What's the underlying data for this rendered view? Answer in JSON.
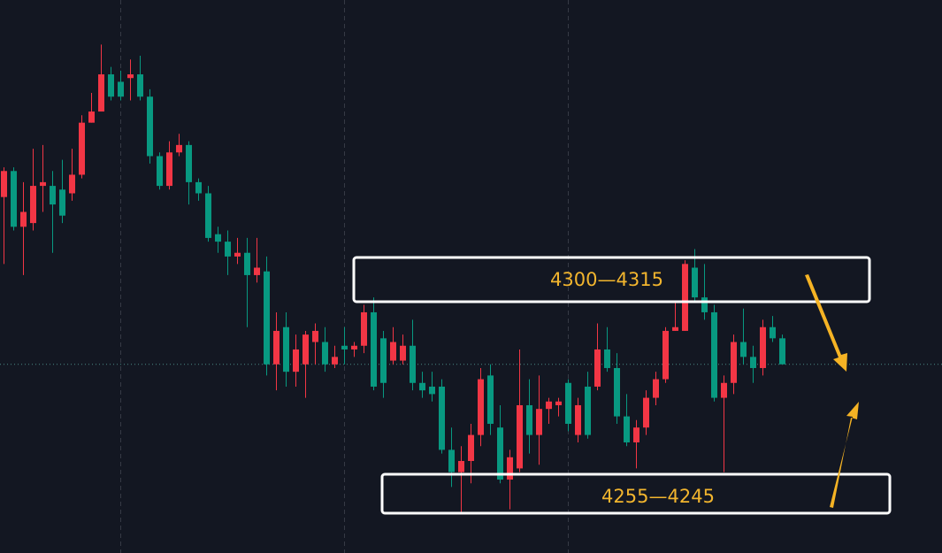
{
  "chart_data": {
    "type": "candlestick",
    "ylim": [
      4234.25,
      4383
    ],
    "up_color": "#f23645",
    "down_color": "#089981",
    "open": [
      4330,
      4337,
      4322,
      4323,
      4333,
      4333,
      4332,
      4331,
      4336,
      4350,
      4353,
      4363,
      4361,
      4362,
      4363,
      4357,
      4341,
      4333,
      4342,
      4344,
      4334,
      4331,
      4320,
      4318,
      4314,
      4315,
      4309,
      4310,
      4285,
      4295,
      4283,
      4285,
      4291,
      4291,
      4285,
      4290,
      4289,
      4290,
      4299,
      4292,
      4286,
      4286,
      4290,
      4280,
      4279,
      4279,
      4262,
      4256,
      4259,
      4266,
      4282,
      4268,
      4254,
      4257,
      4274,
      4266,
      4273,
      4274,
      4280,
      4266,
      4279,
      4279,
      4289,
      4284,
      4271,
      4264,
      4268,
      4276,
      4281,
      4294,
      4294,
      4311,
      4303,
      4299,
      4276,
      4280,
      4291,
      4287,
      4284,
      4295,
      4292
    ],
    "high": [
      4338,
      4338,
      4334,
      4343,
      4344,
      4337,
      4340,
      4343,
      4352,
      4358,
      4371,
      4365,
      4364,
      4367,
      4368,
      4359,
      4342,
      4345,
      4347,
      4345,
      4335,
      4333,
      4322,
      4321,
      4319,
      4319,
      4319,
      4314,
      4299,
      4299,
      4293,
      4294,
      4296,
      4295,
      4290,
      4295,
      4291,
      4301,
      4303,
      4294,
      4295,
      4293,
      4297,
      4283,
      4283,
      4281,
      4268,
      4263,
      4269,
      4284,
      4285,
      4274,
      4262,
      4289,
      4281,
      4282,
      4276,
      4276,
      4281,
      4276,
      4283,
      4296,
      4295,
      4288,
      4277,
      4270,
      4278,
      4283,
      4295,
      4302,
      4313,
      4316,
      4312,
      4301,
      4282,
      4293,
      4300,
      4290,
      4297,
      4298,
      4293
    ],
    "low": [
      4312,
      4321,
      4309,
      4321,
      4326,
      4315,
      4323,
      4329,
      4335,
      4350,
      4353,
      4356,
      4356,
      4356,
      4356,
      4339,
      4332,
      4332,
      4341,
      4328,
      4329,
      4318,
      4315,
      4309,
      4312,
      4295,
      4307,
      4282,
      4278,
      4279,
      4279,
      4276,
      4285,
      4283,
      4284,
      4285,
      4287,
      4288,
      4278,
      4276,
      4285,
      4285,
      4278,
      4276,
      4275,
      4261,
      4252,
      4245,
      4253,
      4263,
      4266,
      4253,
      4246,
      4256,
      4261,
      4258,
      4269,
      4271,
      4267,
      4264,
      4265,
      4278,
      4283,
      4269,
      4263,
      4257,
      4266,
      4274,
      4280,
      4294,
      4294,
      4302,
      4297,
      4275,
      4256,
      4277,
      4285,
      4280,
      4282,
      4291,
      4285
    ],
    "close": [
      4337,
      4322,
      4326,
      4333,
      4334,
      4328,
      4325,
      4336,
      4350,
      4353,
      4363,
      4357,
      4357,
      4363,
      4357,
      4341,
      4333,
      4342,
      4344,
      4334,
      4331,
      4319,
      4318,
      4314,
      4315,
      4309,
      4311,
      4285,
      4294,
      4283,
      4289,
      4293,
      4294,
      4285,
      4287,
      4289,
      4290,
      4299,
      4279,
      4280,
      4291,
      4290,
      4280,
      4278,
      4277,
      4262,
      4256,
      4259,
      4266,
      4281,
      4269,
      4254,
      4260,
      4274,
      4266,
      4273,
      4275,
      4275,
      4269,
      4274,
      4266,
      4289,
      4284,
      4271,
      4264,
      4268,
      4276,
      4281,
      4294,
      4295,
      4312,
      4303,
      4299,
      4276,
      4280,
      4291,
      4287,
      4284,
      4295,
      4292,
      4285
    ],
    "annotations": [
      "4300—4315",
      "4255—4245"
    ]
  }
}
